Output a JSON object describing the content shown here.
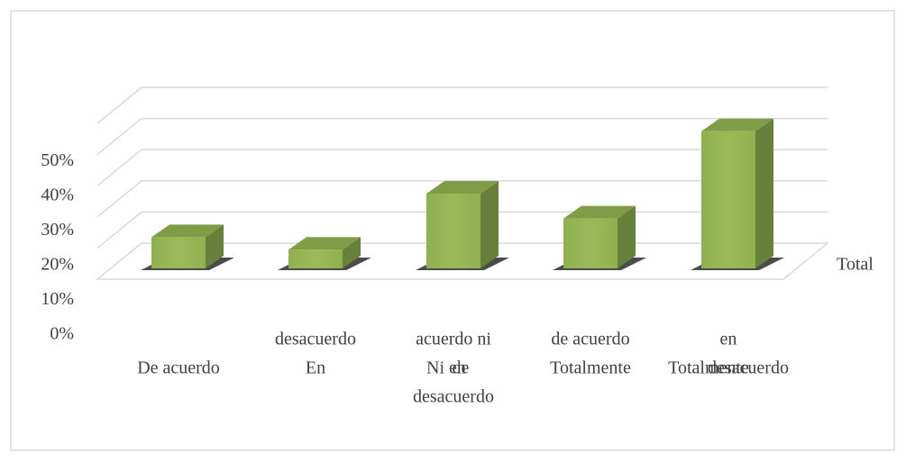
{
  "chart_data": {
    "type": "bar3d",
    "categories": [
      [
        "De acuerdo"
      ],
      [
        "desacuerdo",
        "En"
      ],
      [
        "acuerdo ni",
        "Ni en",
        "de",
        "desacuerdo"
      ],
      [
        "de acuerdo",
        "Totalmente"
      ],
      [
        "en",
        "Totalmente",
        "desacuerdo"
      ]
    ],
    "series": [
      {
        "name": "Total",
        "color": "#9bbb59",
        "values": [
          10,
          6,
          24,
          16,
          44
        ]
      }
    ],
    "ylim": [
      0,
      50
    ],
    "yticks": [
      {
        "value": 0,
        "label": "0%"
      },
      {
        "value": 10,
        "label": "10%"
      },
      {
        "value": 20,
        "label": "20%"
      },
      {
        "value": 30,
        "label": "30%"
      },
      {
        "value": 40,
        "label": "40%"
      },
      {
        "value": 50,
        "label": "50%"
      }
    ],
    "grid": true,
    "legend": "right"
  }
}
